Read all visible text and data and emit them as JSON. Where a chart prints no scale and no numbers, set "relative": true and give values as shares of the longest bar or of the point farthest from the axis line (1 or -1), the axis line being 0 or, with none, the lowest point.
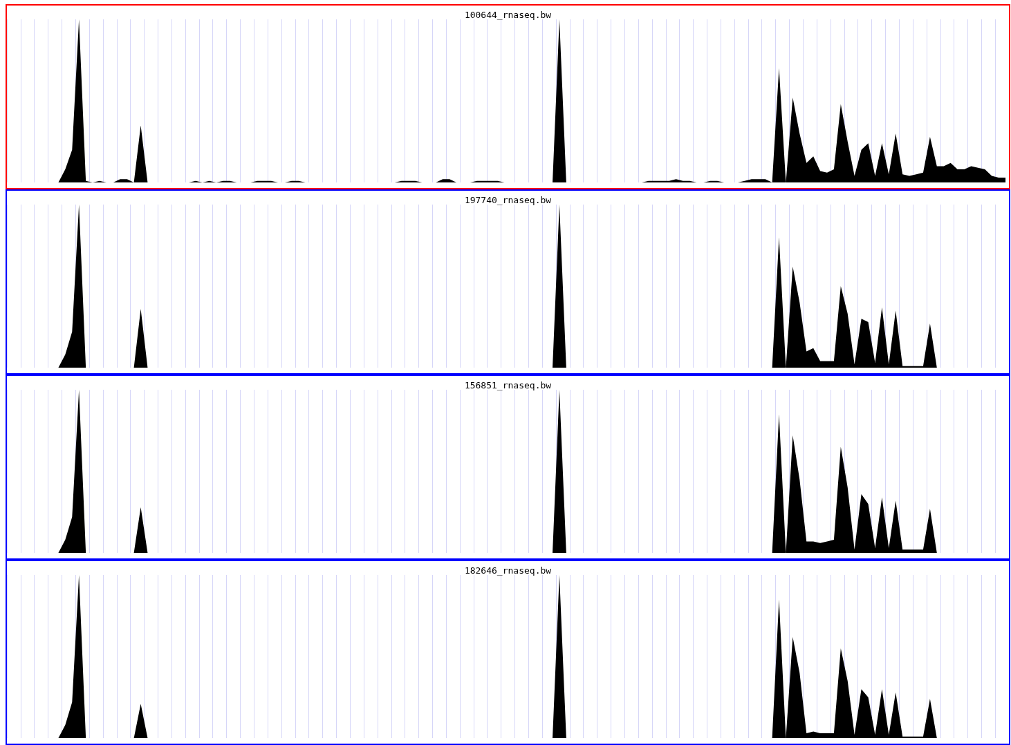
{
  "chart_data": [
    {
      "type": "area",
      "title": "100644_rnaseq.bw",
      "relative": true,
      "grid": "x",
      "marker": "none",
      "categories": [
        null,
        null,
        null,
        null,
        null,
        null,
        null,
        null,
        null,
        null,
        null,
        null,
        null,
        null,
        null,
        null,
        null,
        null,
        null,
        null,
        null,
        null,
        null,
        null,
        null,
        null,
        null,
        null,
        null,
        null,
        null,
        null,
        null,
        null,
        null,
        null,
        null,
        null,
        null,
        null,
        null,
        null,
        null,
        null,
        null,
        null,
        null,
        null,
        null,
        null,
        null,
        null,
        null,
        null,
        null,
        null,
        null,
        null,
        null,
        null,
        null,
        null,
        null,
        null,
        null,
        null,
        null,
        null,
        null,
        null,
        null,
        null,
        null,
        null,
        null,
        null,
        null,
        null,
        null,
        null,
        null,
        null,
        null,
        null,
        null,
        null,
        null,
        null,
        null,
        null,
        null,
        null,
        null,
        null,
        null,
        null,
        null,
        null,
        null,
        null,
        null,
        null,
        null,
        null,
        null,
        null,
        null,
        null,
        null,
        null,
        null,
        null,
        null,
        null,
        null,
        null,
        null,
        null,
        null,
        null,
        null,
        null,
        null,
        null,
        null,
        null,
        null,
        null,
        null,
        null,
        null,
        null,
        null,
        null,
        null,
        null,
        null,
        null,
        null,
        null,
        null,
        null,
        null,
        null,
        null,
        null
      ],
      "series": [
        {
          "color": "#000000",
          "values": [
            0,
            0,
            0,
            0,
            0,
            0,
            0,
            0,
            0.08,
            0.2,
            1,
            0.01,
            0,
            0.01,
            0,
            0,
            0.02,
            0.02,
            0,
            0.35,
            0,
            0,
            0,
            0,
            0,
            0,
            0,
            0.01,
            0,
            0.01,
            0,
            0.01,
            0.01,
            0,
            0,
            0,
            0.01,
            0.01,
            0.01,
            0,
            0,
            0.01,
            0.01,
            0,
            0,
            0,
            0,
            0,
            0,
            0,
            0,
            0,
            0,
            0,
            0,
            0,
            0,
            0.01,
            0.01,
            0.01,
            0,
            0,
            0,
            0.02,
            0.02,
            0,
            0,
            0,
            0.01,
            0.01,
            0.01,
            0.01,
            0,
            0,
            0,
            0,
            0,
            0,
            0,
            0,
            1,
            0,
            0,
            0,
            0,
            0,
            0,
            0,
            0,
            0,
            0,
            0,
            0,
            0.01,
            0.01,
            0.01,
            0.01,
            0.02,
            0.01,
            0.01,
            0,
            0,
            0.01,
            0.01,
            0,
            0,
            0,
            0.01,
            0.02,
            0.02,
            0.02,
            0,
            0.7,
            0,
            0.52,
            0.3,
            0.12,
            0.16,
            0.07,
            0.06,
            0.08,
            0.48,
            0.25,
            0.04,
            0.2,
            0.24,
            0.04,
            0.24,
            0.05,
            0.3,
            0.05,
            0.04,
            0.05,
            0.06,
            0.28,
            0.1,
            0.1,
            0.12,
            0.08,
            0.08,
            0.1,
            0.09,
            0.08,
            0.04,
            0.03,
            0.03
          ]
        }
      ]
    },
    {
      "type": "area",
      "title": "197740_rnaseq.bw",
      "relative": true,
      "grid": "x",
      "marker": "none",
      "categories": [
        null,
        null,
        null,
        null,
        null,
        null,
        null,
        null,
        null,
        null,
        null,
        null,
        null,
        null,
        null,
        null,
        null,
        null,
        null,
        null,
        null,
        null,
        null,
        null,
        null,
        null,
        null,
        null,
        null,
        null,
        null,
        null,
        null,
        null,
        null,
        null,
        null,
        null,
        null,
        null,
        null,
        null,
        null,
        null,
        null,
        null,
        null,
        null,
        null,
        null,
        null,
        null,
        null,
        null,
        null,
        null,
        null,
        null,
        null,
        null,
        null,
        null,
        null,
        null,
        null,
        null,
        null,
        null,
        null,
        null,
        null,
        null,
        null,
        null,
        null,
        null,
        null,
        null,
        null,
        null,
        null,
        null,
        null,
        null,
        null,
        null,
        null,
        null,
        null,
        null,
        null,
        null,
        null,
        null,
        null,
        null,
        null,
        null,
        null,
        null,
        null,
        null,
        null,
        null,
        null,
        null,
        null,
        null,
        null,
        null,
        null,
        null,
        null,
        null,
        null,
        null,
        null,
        null,
        null,
        null,
        null,
        null,
        null,
        null,
        null,
        null,
        null,
        null,
        null,
        null,
        null,
        null,
        null,
        null,
        null,
        null,
        null,
        null,
        null,
        null,
        null,
        null,
        null,
        null,
        null,
        null
      ],
      "series": [
        {
          "color": "#000000",
          "values": [
            0,
            0,
            0,
            0,
            0,
            0,
            0,
            0,
            0.08,
            0.22,
            1,
            0,
            0,
            0,
            0,
            0,
            0,
            0,
            0,
            0.36,
            0,
            0,
            0,
            0,
            0,
            0,
            0,
            0,
            0,
            0,
            0,
            0,
            0,
            0,
            0,
            0,
            0,
            0,
            0,
            0,
            0,
            0,
            0,
            0,
            0,
            0,
            0,
            0,
            0,
            0,
            0,
            0,
            0,
            0,
            0,
            0,
            0,
            0,
            0,
            0,
            0,
            0,
            0,
            0,
            0,
            0,
            0,
            0,
            0,
            0,
            0,
            0,
            0,
            0,
            0,
            0,
            0,
            0,
            0,
            0,
            1,
            0,
            0,
            0,
            0,
            0,
            0,
            0,
            0,
            0,
            0,
            0,
            0,
            0,
            0,
            0,
            0,
            0,
            0,
            0,
            0,
            0,
            0,
            0,
            0,
            0,
            0,
            0,
            0,
            0,
            0,
            0,
            0.8,
            0,
            0.62,
            0.4,
            0.1,
            0.12,
            0.04,
            0.04,
            0.04,
            0.5,
            0.33,
            0.02,
            0.3,
            0.28,
            0.03,
            0.37,
            0.02,
            0.35,
            0.01,
            0.01,
            0.01,
            0.01,
            0.27,
            0,
            0,
            0,
            0,
            0,
            0,
            0,
            0,
            0,
            0,
            0
          ]
        }
      ]
    },
    {
      "type": "area",
      "title": "156851_rnaseq.bw",
      "relative": true,
      "grid": "x",
      "marker": "none",
      "categories": [
        null,
        null,
        null,
        null,
        null,
        null,
        null,
        null,
        null,
        null,
        null,
        null,
        null,
        null,
        null,
        null,
        null,
        null,
        null,
        null,
        null,
        null,
        null,
        null,
        null,
        null,
        null,
        null,
        null,
        null,
        null,
        null,
        null,
        null,
        null,
        null,
        null,
        null,
        null,
        null,
        null,
        null,
        null,
        null,
        null,
        null,
        null,
        null,
        null,
        null,
        null,
        null,
        null,
        null,
        null,
        null,
        null,
        null,
        null,
        null,
        null,
        null,
        null,
        null,
        null,
        null,
        null,
        null,
        null,
        null,
        null,
        null,
        null,
        null,
        null,
        null,
        null,
        null,
        null,
        null,
        null,
        null,
        null,
        null,
        null,
        null,
        null,
        null,
        null,
        null,
        null,
        null,
        null,
        null,
        null,
        null,
        null,
        null,
        null,
        null,
        null,
        null,
        null,
        null,
        null,
        null,
        null,
        null,
        null,
        null,
        null,
        null,
        null,
        null,
        null,
        null,
        null,
        null,
        null,
        null,
        null,
        null,
        null,
        null,
        null,
        null,
        null,
        null,
        null,
        null,
        null,
        null,
        null,
        null,
        null,
        null,
        null,
        null,
        null,
        null,
        null,
        null,
        null,
        null,
        null,
        null
      ],
      "series": [
        {
          "color": "#000000",
          "values": [
            0,
            0,
            0,
            0,
            0,
            0,
            0,
            0,
            0.08,
            0.22,
            1,
            0,
            0,
            0,
            0,
            0,
            0,
            0,
            0,
            0.28,
            0,
            0,
            0,
            0,
            0,
            0,
            0,
            0,
            0,
            0,
            0,
            0,
            0,
            0,
            0,
            0,
            0,
            0,
            0,
            0,
            0,
            0,
            0,
            0,
            0,
            0,
            0,
            0,
            0,
            0,
            0,
            0,
            0,
            0,
            0,
            0,
            0,
            0,
            0,
            0,
            0,
            0,
            0,
            0,
            0,
            0,
            0,
            0,
            0,
            0,
            0,
            0,
            0,
            0,
            0,
            0,
            0,
            0,
            0,
            0,
            1,
            0,
            0,
            0,
            0,
            0,
            0,
            0,
            0,
            0,
            0,
            0,
            0,
            0,
            0,
            0,
            0,
            0,
            0,
            0,
            0,
            0,
            0,
            0,
            0,
            0,
            0,
            0,
            0,
            0,
            0,
            0,
            0.85,
            0,
            0.72,
            0.45,
            0.07,
            0.07,
            0.06,
            0.07,
            0.08,
            0.65,
            0.4,
            0.02,
            0.36,
            0.3,
            0.03,
            0.34,
            0.03,
            0.32,
            0.02,
            0.02,
            0.02,
            0.02,
            0.27,
            0,
            0,
            0,
            0,
            0,
            0,
            0,
            0,
            0,
            0,
            0
          ]
        }
      ]
    },
    {
      "type": "area",
      "title": "182646_rnaseq.bw",
      "relative": true,
      "grid": "x",
      "marker": "none",
      "categories": [
        null,
        null,
        null,
        null,
        null,
        null,
        null,
        null,
        null,
        null,
        null,
        null,
        null,
        null,
        null,
        null,
        null,
        null,
        null,
        null,
        null,
        null,
        null,
        null,
        null,
        null,
        null,
        null,
        null,
        null,
        null,
        null,
        null,
        null,
        null,
        null,
        null,
        null,
        null,
        null,
        null,
        null,
        null,
        null,
        null,
        null,
        null,
        null,
        null,
        null,
        null,
        null,
        null,
        null,
        null,
        null,
        null,
        null,
        null,
        null,
        null,
        null,
        null,
        null,
        null,
        null,
        null,
        null,
        null,
        null,
        null,
        null,
        null,
        null,
        null,
        null,
        null,
        null,
        null,
        null,
        null,
        null,
        null,
        null,
        null,
        null,
        null,
        null,
        null,
        null,
        null,
        null,
        null,
        null,
        null,
        null,
        null,
        null,
        null,
        null,
        null,
        null,
        null,
        null,
        null,
        null,
        null,
        null,
        null,
        null,
        null,
        null,
        null,
        null,
        null,
        null,
        null,
        null,
        null,
        null,
        null,
        null,
        null,
        null,
        null,
        null,
        null,
        null,
        null,
        null,
        null,
        null,
        null,
        null,
        null,
        null,
        null,
        null,
        null,
        null,
        null,
        null,
        null,
        null,
        null,
        null
      ],
      "series": [
        {
          "color": "#000000",
          "values": [
            0,
            0,
            0,
            0,
            0,
            0,
            0,
            0,
            0.08,
            0.22,
            1,
            0,
            0,
            0,
            0,
            0,
            0,
            0,
            0,
            0.21,
            0,
            0,
            0,
            0,
            0,
            0,
            0,
            0,
            0,
            0,
            0,
            0,
            0,
            0,
            0,
            0,
            0,
            0,
            0,
            0,
            0,
            0,
            0,
            0,
            0,
            0,
            0,
            0,
            0,
            0,
            0,
            0,
            0,
            0,
            0,
            0,
            0,
            0,
            0,
            0,
            0,
            0,
            0,
            0,
            0,
            0,
            0,
            0,
            0,
            0,
            0,
            0,
            0,
            0,
            0,
            0,
            0,
            0,
            0,
            0,
            1,
            0,
            0,
            0,
            0,
            0,
            0,
            0,
            0,
            0,
            0,
            0,
            0,
            0,
            0,
            0,
            0,
            0,
            0,
            0,
            0,
            0,
            0,
            0,
            0,
            0,
            0,
            0,
            0,
            0,
            0,
            0,
            0.85,
            0,
            0.62,
            0.4,
            0.03,
            0.04,
            0.03,
            0.03,
            0.03,
            0.55,
            0.35,
            0.02,
            0.3,
            0.25,
            0.02,
            0.3,
            0.02,
            0.28,
            0.01,
            0.01,
            0.01,
            0.01,
            0.24,
            0,
            0,
            0,
            0,
            0,
            0,
            0,
            0,
            0,
            0,
            0
          ]
        }
      ]
    }
  ]
}
